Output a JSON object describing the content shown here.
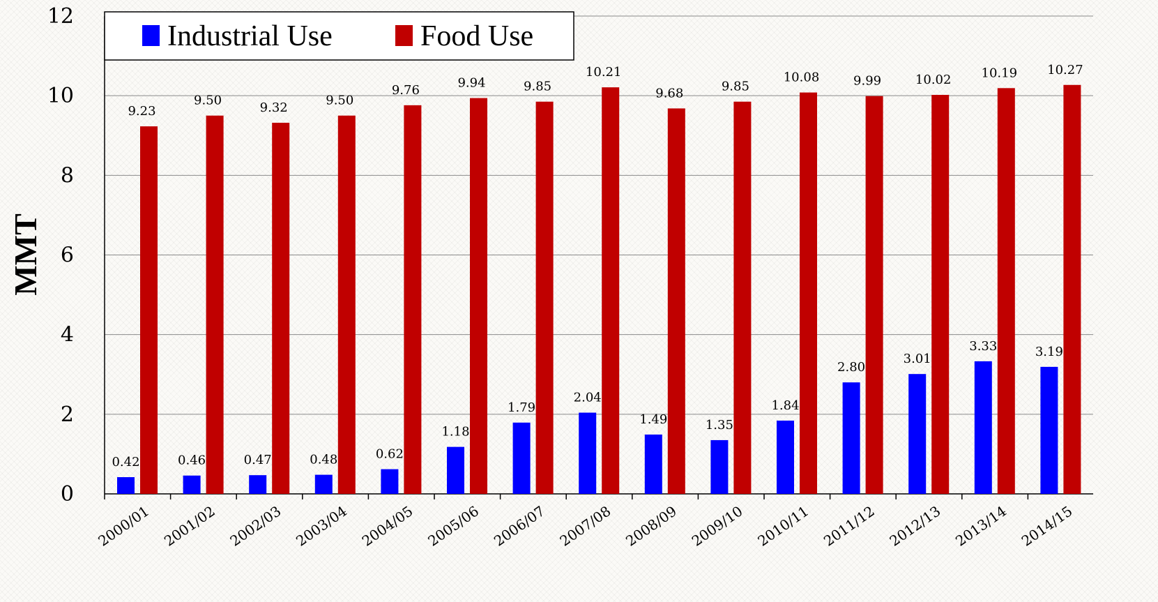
{
  "chart_data": {
    "type": "bar",
    "title": "",
    "xlabel": "",
    "ylabel": "MMT",
    "ylim": [
      0,
      12
    ],
    "yticks": [
      0,
      2,
      4,
      6,
      8,
      10,
      12
    ],
    "grid": true,
    "legend_position": "top-left",
    "categories": [
      "2000/01",
      "2001/02",
      "2002/03",
      "2003/04",
      "2004/05",
      "2005/06",
      "2006/07",
      "2007/08",
      "2008/09",
      "2009/10",
      "2010/11",
      "2011/12",
      "2012/13",
      "2013/14",
      "2014/15"
    ],
    "series": [
      {
        "name": "Industrial Use",
        "color": "#0000ff",
        "values": [
          0.42,
          0.46,
          0.47,
          0.48,
          0.62,
          1.18,
          1.79,
          2.04,
          1.49,
          1.35,
          1.84,
          2.8,
          3.01,
          3.33,
          3.19
        ],
        "labels": [
          "0.42",
          "0.46",
          "0.47",
          "0.48",
          "0.62",
          "1.18",
          "1.79",
          "2.04",
          "1.49",
          "1.35",
          "1.84",
          "2.80",
          "3.01",
          "3.33",
          "3.19"
        ]
      },
      {
        "name": "Food Use",
        "color": "#c00000",
        "values": [
          9.23,
          9.5,
          9.32,
          9.5,
          9.76,
          9.94,
          9.85,
          10.21,
          9.68,
          9.85,
          10.08,
          9.99,
          10.02,
          10.19,
          10.27
        ],
        "labels": [
          "9.23",
          "9.50",
          "9.32",
          "9.50",
          "9.76",
          "9.94",
          "9.85",
          "10.21",
          "9.68",
          "9.85",
          "10.08",
          "9.99",
          "10.02",
          "10.19",
          "10.27"
        ]
      }
    ]
  }
}
